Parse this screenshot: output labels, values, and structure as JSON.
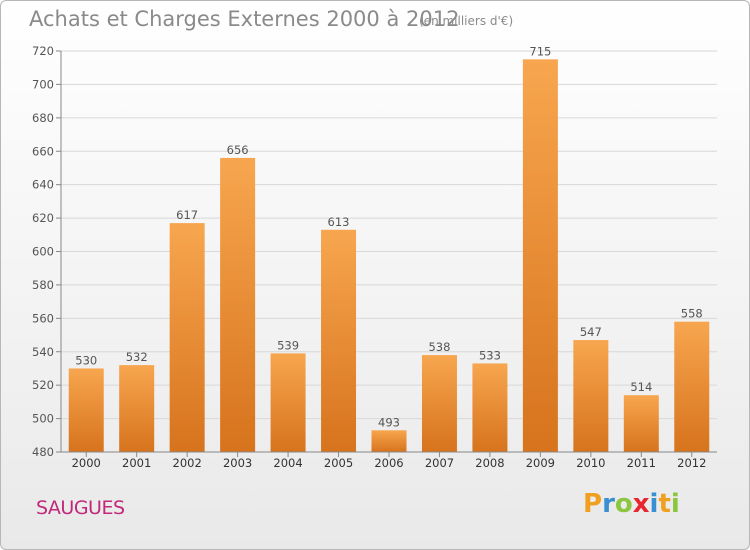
{
  "header": {
    "title": "Achats et Charges Externes 2000 à 2012",
    "unit": "(en milliers d'€)"
  },
  "footer": {
    "commune": "SAUGUES",
    "logo_text": "Proxiti"
  },
  "colors": {
    "bar_top": "#f7a64f",
    "bar_bottom": "#d7731d",
    "commune": "#c0287a",
    "grid": "#d8d8d8",
    "axis_text": "#555555"
  },
  "chart_data": {
    "type": "bar",
    "title": "Achats et Charges Externes 2000 à 2012",
    "subtitle": "(en milliers d'€)",
    "xlabel": "",
    "ylabel": "",
    "categories": [
      "2000",
      "2001",
      "2002",
      "2003",
      "2004",
      "2005",
      "2006",
      "2007",
      "2008",
      "2009",
      "2010",
      "2011",
      "2012"
    ],
    "values": [
      530,
      532,
      617,
      656,
      539,
      613,
      493,
      538,
      533,
      715,
      547,
      514,
      558
    ],
    "ylim": [
      480,
      720
    ],
    "yticks": [
      480,
      500,
      520,
      540,
      560,
      580,
      600,
      620,
      640,
      660,
      680,
      700,
      720
    ],
    "grid": true,
    "legend": "none"
  }
}
